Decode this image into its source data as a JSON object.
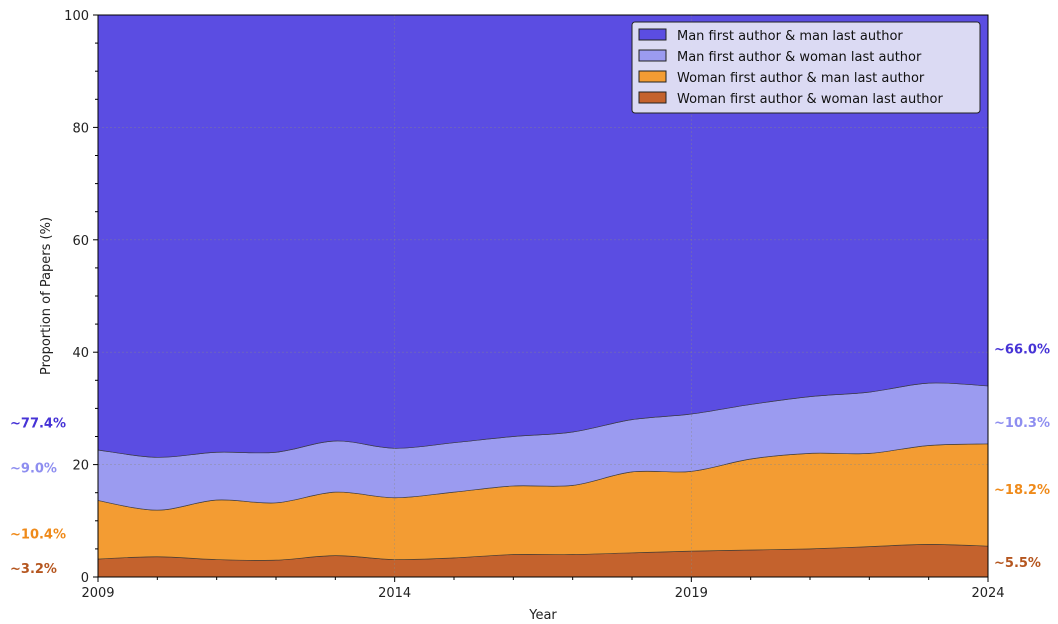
{
  "chart_data": {
    "type": "area",
    "stacked": true,
    "title": "",
    "xlabel": "Year",
    "ylabel": "Proportion of Papers (%)",
    "xlim": [
      2009,
      2024
    ],
    "ylim": [
      0,
      100
    ],
    "x_ticks": [
      2009,
      2014,
      2019,
      2024
    ],
    "y_ticks": [
      0,
      20,
      40,
      60,
      80,
      100
    ],
    "grid": true,
    "legend_position": "top-right",
    "x": [
      2009,
      2010,
      2011,
      2012,
      2013,
      2014,
      2015,
      2016,
      2017,
      2018,
      2019,
      2020,
      2021,
      2022,
      2023,
      2024
    ],
    "series": [
      {
        "name": "Woman first author & woman last author",
        "color": "#c4622d",
        "values": [
          3.2,
          3.6,
          3.1,
          3.0,
          3.8,
          3.1,
          3.4,
          4.0,
          4.0,
          4.3,
          4.6,
          4.8,
          5.0,
          5.4,
          5.8,
          5.5
        ]
      },
      {
        "name": "Woman first author & man last author",
        "color": "#f39c33",
        "values": [
          10.4,
          8.3,
          10.6,
          10.2,
          11.3,
          11.0,
          11.7,
          12.2,
          12.3,
          14.4,
          14.2,
          16.2,
          17.0,
          16.6,
          17.6,
          18.2
        ]
      },
      {
        "name": "Man first author & woman last author",
        "color": "#9b9bf0",
        "values": [
          9.0,
          9.4,
          8.5,
          9.0,
          9.1,
          8.8,
          8.8,
          8.8,
          9.5,
          9.3,
          10.2,
          9.7,
          10.1,
          10.9,
          11.1,
          10.3
        ]
      },
      {
        "name": "Man first author & man last author",
        "color": "#5b4de2",
        "values": [
          77.4,
          78.7,
          77.8,
          77.8,
          75.8,
          77.1,
          76.1,
          75.0,
          74.2,
          72.0,
          71.0,
          69.3,
          67.9,
          67.1,
          65.5,
          66.0
        ]
      }
    ],
    "annotations_left": [
      {
        "text": "~77.4%",
        "color": "#4633d6",
        "y": 77.4,
        "label_at": 27.5
      },
      {
        "text": "~9.0%",
        "color": "#8e8ef0",
        "y": 9.0,
        "label_at": 19.5
      },
      {
        "text": "~10.4%",
        "color": "#ef8a1a",
        "y": 10.4,
        "label_at": 7.7
      },
      {
        "text": "~3.2%",
        "color": "#b5561f",
        "y": 3.2,
        "label_at": 1.6
      }
    ],
    "annotations_right": [
      {
        "text": "~66.0%",
        "color": "#4633d6",
        "y": 66.0,
        "label_at": 40.7
      },
      {
        "text": "~10.3%",
        "color": "#8e8ef0",
        "y": 10.3,
        "label_at": 27.6
      },
      {
        "text": "~18.2%",
        "color": "#ef8a1a",
        "y": 18.2,
        "label_at": 15.7
      },
      {
        "text": "~5.5%",
        "color": "#b5561f",
        "y": 5.5,
        "label_at": 2.7
      }
    ]
  }
}
